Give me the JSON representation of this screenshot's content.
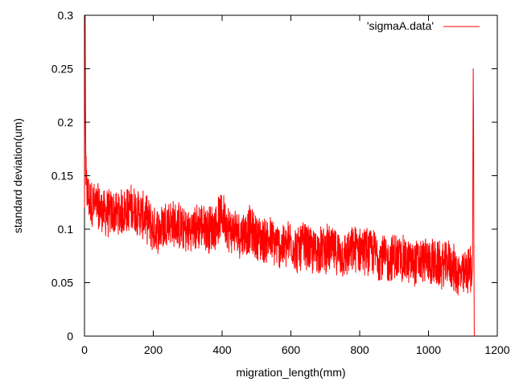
{
  "chart_data": {
    "type": "line",
    "title": "",
    "xlabel": "migration_length(mm)",
    "ylabel": "standard deviation(um)",
    "xlim": [
      0,
      1200
    ],
    "ylim": [
      0,
      0.3
    ],
    "xticks": [
      "0",
      "200",
      "400",
      "600",
      "800",
      "1000",
      "1200"
    ],
    "yticks": [
      "0",
      "0.05",
      "0.1",
      "0.15",
      "0.2",
      "0.25",
      "0.3"
    ],
    "legend": {
      "position": "top-right"
    },
    "grid": false,
    "series": [
      {
        "name": "'sigmaA.data'",
        "color": "#ff0000",
        "x": [
          0,
          2,
          4,
          6,
          10,
          20,
          40,
          60,
          80,
          100,
          120,
          140,
          160,
          180,
          200,
          220,
          240,
          260,
          280,
          300,
          320,
          340,
          360,
          380,
          400,
          420,
          440,
          460,
          480,
          500,
          520,
          540,
          560,
          580,
          600,
          620,
          640,
          660,
          680,
          700,
          720,
          740,
          760,
          780,
          800,
          820,
          840,
          860,
          880,
          900,
          920,
          940,
          960,
          980,
          1000,
          1020,
          1040,
          1060,
          1080,
          1100,
          1110,
          1120,
          1125,
          1128,
          1130,
          1131,
          1132,
          1133,
          1134
        ],
        "y": [
          0.12,
          0.3,
          0.15,
          0.14,
          0.13,
          0.125,
          0.12,
          0.115,
          0.115,
          0.115,
          0.118,
          0.12,
          0.115,
          0.11,
          0.1,
          0.1,
          0.108,
          0.105,
          0.102,
          0.098,
          0.1,
          0.105,
          0.1,
          0.102,
          0.115,
          0.1,
          0.098,
          0.095,
          0.1,
          0.092,
          0.09,
          0.09,
          0.085,
          0.083,
          0.088,
          0.08,
          0.085,
          0.078,
          0.08,
          0.082,
          0.08,
          0.078,
          0.075,
          0.08,
          0.082,
          0.08,
          0.078,
          0.075,
          0.07,
          0.075,
          0.072,
          0.07,
          0.068,
          0.07,
          0.07,
          0.068,
          0.065,
          0.07,
          0.06,
          0.055,
          0.06,
          0.065,
          0.06,
          0.065,
          0.25,
          0.2,
          0.09,
          0.0,
          0.0
        ]
      }
    ]
  }
}
